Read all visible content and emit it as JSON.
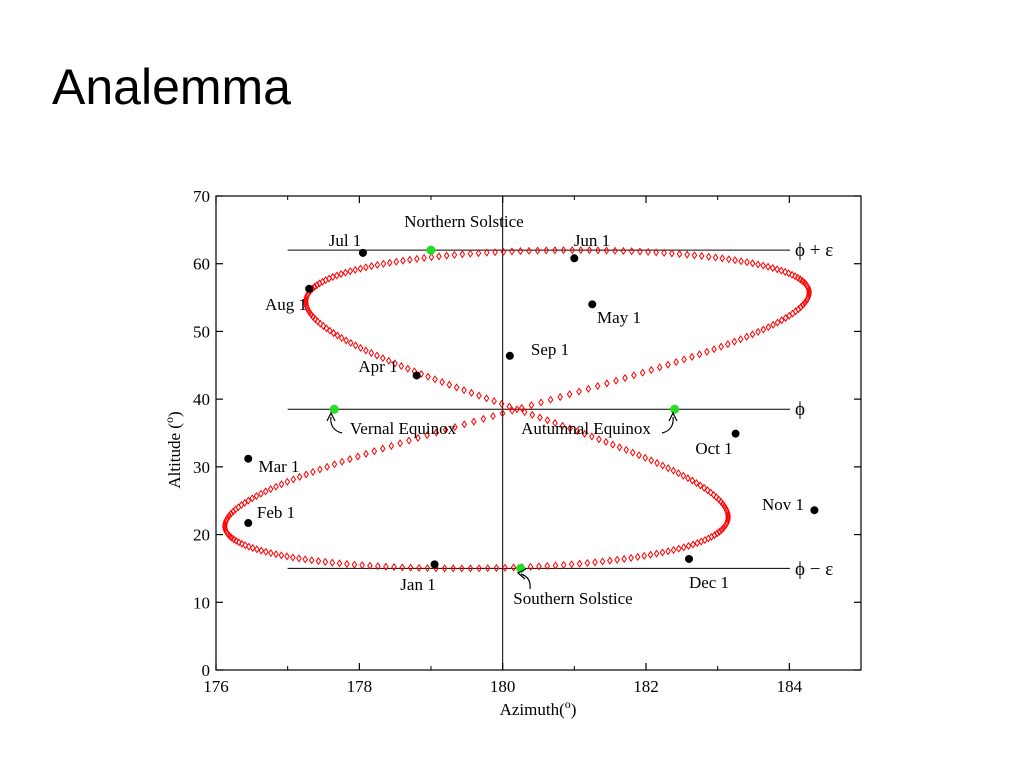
{
  "slide": {
    "title": "Analemma"
  },
  "colors": {
    "curve": "#ff0000",
    "date_marker": "#000000",
    "event_marker": "#22dd22",
    "axis": "#000000"
  },
  "chart_data": {
    "type": "scatter",
    "title": "",
    "xlabel": "Azimuth(",
    "xlabel_sup": "o",
    "xlabel_close": ")",
    "ylabel": "Altitude (",
    "ylabel_sup": "o",
    "ylabel_close": ")",
    "xlim": [
      176,
      185
    ],
    "ylim": [
      0,
      70
    ],
    "xticks": [
      176,
      178,
      180,
      182,
      184
    ],
    "yticks": [
      0,
      10,
      20,
      30,
      40,
      50,
      60,
      70
    ],
    "grid": false,
    "vertical_reference": {
      "x": 180
    },
    "reference_lines": [
      {
        "name": "phi_plus_eps",
        "y": 62,
        "x_start": 177,
        "label": "ϕ + ε"
      },
      {
        "name": "phi",
        "y": 38.5,
        "x_start": 177,
        "label": "ϕ"
      },
      {
        "name": "phi_minus_eps",
        "y": 15,
        "x_start": 177,
        "label": "ϕ − ε"
      }
    ],
    "analemma_series": {
      "name": "",
      "marker": "diamond",
      "fitted_curve": {
        "x_center": 180.2,
        "x_amp_cross": 3.5,
        "x_amp_equation": 0.8,
        "y_center": 38.5,
        "y_amp": 23.5
      }
    },
    "date_markers": [
      {
        "label": "Jan 1",
        "x": 179.05,
        "y": 15.6
      },
      {
        "label": "Feb 1",
        "x": 176.45,
        "y": 21.7
      },
      {
        "label": "Mar 1",
        "x": 176.45,
        "y": 31.2
      },
      {
        "label": "Apr 1",
        "x": 178.8,
        "y": 43.5
      },
      {
        "label": "May 1",
        "x": 181.25,
        "y": 54.0
      },
      {
        "label": "Jun 1",
        "x": 181.0,
        "y": 60.8
      },
      {
        "label": "Jul 1",
        "x": 178.05,
        "y": 61.6
      },
      {
        "label": "Aug 1",
        "x": 177.3,
        "y": 56.3
      },
      {
        "label": "Sep 1",
        "x": 180.1,
        "y": 46.4
      },
      {
        "label": "Oct 1",
        "x": 183.25,
        "y": 34.9
      },
      {
        "label": "Nov 1",
        "x": 184.35,
        "y": 23.6
      },
      {
        "label": "Dec 1",
        "x": 182.6,
        "y": 16.4
      }
    ],
    "event_markers": [
      {
        "label": "Northern Solstice",
        "x": 179.0,
        "y": 62.0
      },
      {
        "label": "Vernal Equinox",
        "x": 177.65,
        "y": 38.5
      },
      {
        "label": "Autumnal Equinox",
        "x": 182.4,
        "y": 38.5
      },
      {
        "label": "Southern Solstice",
        "x": 180.25,
        "y": 15.0
      }
    ]
  }
}
